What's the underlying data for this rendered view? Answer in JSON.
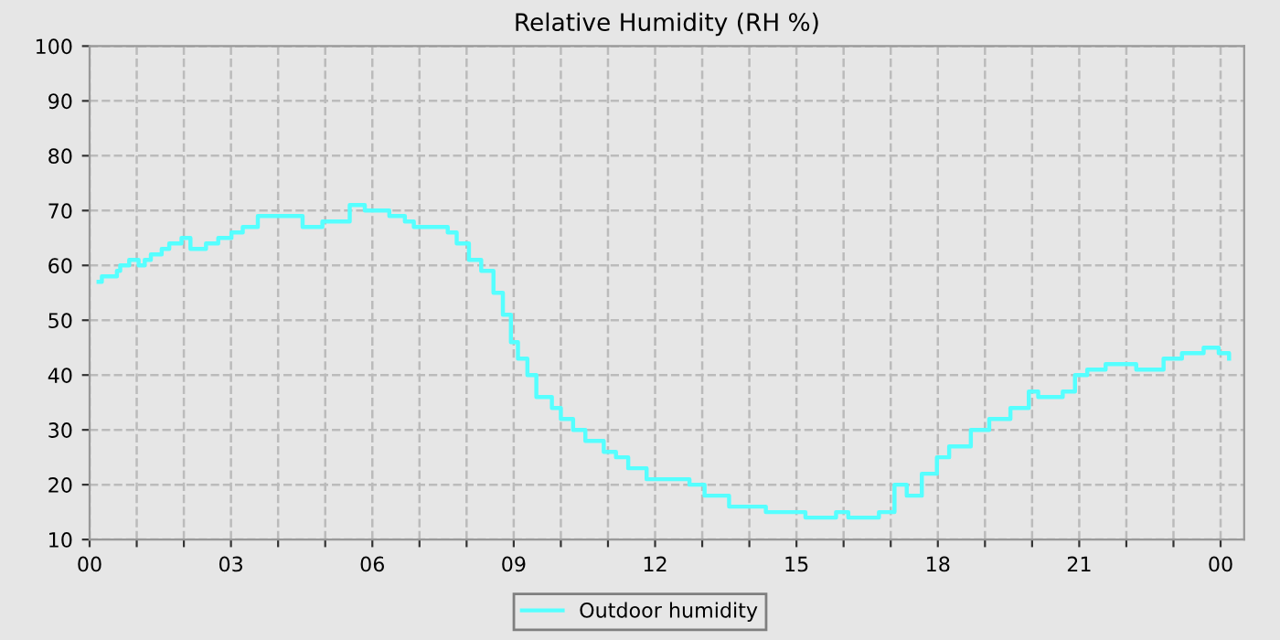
{
  "chart_data": {
    "type": "step",
    "title": "Relative Humidity (RH %)",
    "x": [
      0.19,
      0.26,
      0.58,
      0.65,
      0.84,
      1.04,
      1.17,
      1.3,
      1.53,
      1.69,
      1.95,
      2.14,
      2.47,
      2.73,
      3.01,
      3.25,
      3.57,
      4.35,
      4.52,
      4.94,
      5.32,
      5.52,
      5.84,
      6.23,
      6.36,
      6.69,
      6.88,
      7.47,
      7.6,
      7.79,
      8.05,
      8.31,
      8.57,
      8.77,
      8.94,
      9.09,
      9.29,
      9.48,
      9.81,
      10.0,
      10.26,
      10.52,
      10.91,
      11.17,
      11.43,
      11.82,
      12.08,
      12.73,
      13.05,
      13.57,
      14.35,
      15.19,
      15.84,
      16.1,
      16.75,
      17.08,
      17.34,
      17.66,
      17.98,
      18.24,
      18.7,
      19.09,
      19.54,
      19.93,
      20.13,
      20.65,
      20.91,
      21.17,
      21.56,
      22.21,
      22.79,
      23.18,
      23.64,
      23.96,
      24.18
    ],
    "series": [
      {
        "name": "Outdoor humidity",
        "color": "#55ffff",
        "values": [
          57,
          58,
          59,
          60,
          61,
          60,
          61,
          62,
          63,
          64,
          65,
          63,
          64,
          65,
          66,
          67,
          69,
          69,
          67,
          68,
          68,
          71,
          70,
          70,
          69,
          68,
          67,
          67,
          66,
          64,
          61,
          59,
          55,
          51,
          46,
          43,
          40,
          36,
          34,
          32,
          30,
          28,
          26,
          25,
          23,
          21,
          21,
          20,
          18,
          16,
          15,
          14,
          15,
          14,
          15,
          20,
          18,
          22,
          25,
          27,
          30,
          32,
          34,
          37,
          36,
          37,
          40,
          41,
          42,
          41,
          43,
          44,
          45,
          44,
          43
        ]
      }
    ],
    "xlim": [
      0,
      24.5
    ],
    "xticks": [
      {
        "value": 0,
        "label": "00"
      },
      {
        "value": 1,
        "label": null
      },
      {
        "value": 2,
        "label": null
      },
      {
        "value": 3,
        "label": "03"
      },
      {
        "value": 4,
        "label": null
      },
      {
        "value": 5,
        "label": null
      },
      {
        "value": 6,
        "label": "06"
      },
      {
        "value": 7,
        "label": null
      },
      {
        "value": 8,
        "label": null
      },
      {
        "value": 9,
        "label": "09"
      },
      {
        "value": 10,
        "label": null
      },
      {
        "value": 11,
        "label": null
      },
      {
        "value": 12,
        "label": "12"
      },
      {
        "value": 13,
        "label": null
      },
      {
        "value": 14,
        "label": null
      },
      {
        "value": 15,
        "label": "15"
      },
      {
        "value": 16,
        "label": null
      },
      {
        "value": 17,
        "label": null
      },
      {
        "value": 18,
        "label": "18"
      },
      {
        "value": 19,
        "label": null
      },
      {
        "value": 20,
        "label": null
      },
      {
        "value": 21,
        "label": "21"
      },
      {
        "value": 22,
        "label": null
      },
      {
        "value": 23,
        "label": null
      },
      {
        "value": 24,
        "label": "00"
      }
    ],
    "ylim": [
      10,
      100
    ],
    "yticks": [
      10,
      20,
      30,
      40,
      50,
      60,
      70,
      80,
      90,
      100
    ],
    "grid": true,
    "legend": "bottom",
    "line_style": "solid",
    "marker": "none"
  }
}
